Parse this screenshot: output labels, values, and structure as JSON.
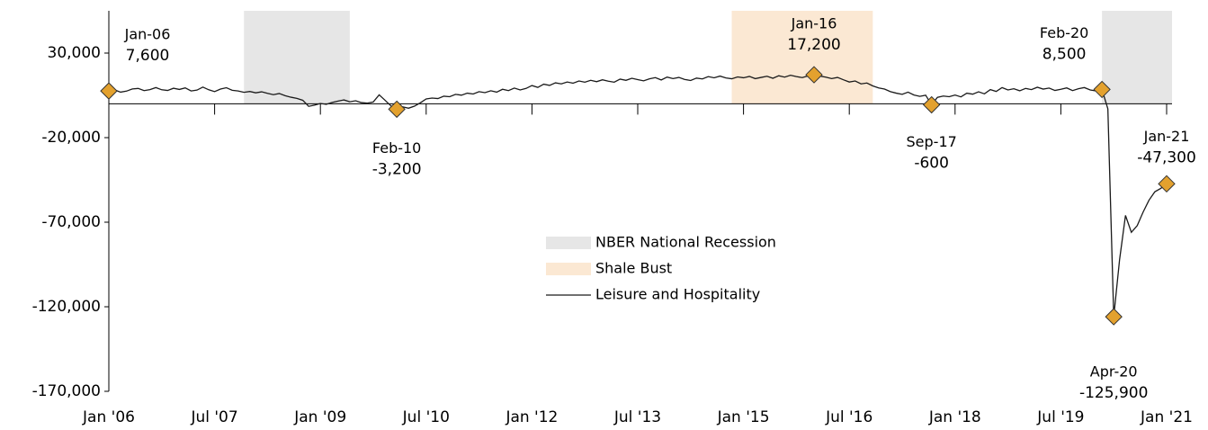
{
  "chart_data": {
    "type": "line",
    "x": [
      "2006-01",
      "2006-02",
      "2006-03",
      "2006-04",
      "2006-05",
      "2006-06",
      "2006-07",
      "2006-08",
      "2006-09",
      "2006-10",
      "2006-11",
      "2006-12",
      "2007-01",
      "2007-02",
      "2007-03",
      "2007-04",
      "2007-05",
      "2007-06",
      "2007-07",
      "2007-08",
      "2007-09",
      "2007-10",
      "2007-11",
      "2007-12",
      "2008-01",
      "2008-02",
      "2008-03",
      "2008-04",
      "2008-05",
      "2008-06",
      "2008-07",
      "2008-08",
      "2008-09",
      "2008-10",
      "2008-11",
      "2008-12",
      "2009-01",
      "2009-02",
      "2009-03",
      "2009-04",
      "2009-05",
      "2009-06",
      "2009-07",
      "2009-08",
      "2009-09",
      "2009-10",
      "2009-11",
      "2009-12",
      "2010-01",
      "2010-02",
      "2010-03",
      "2010-04",
      "2010-05",
      "2010-06",
      "2010-07",
      "2010-08",
      "2010-09",
      "2010-10",
      "2010-11",
      "2010-12",
      "2011-01",
      "2011-02",
      "2011-03",
      "2011-04",
      "2011-05",
      "2011-06",
      "2011-07",
      "2011-08",
      "2011-09",
      "2011-10",
      "2011-11",
      "2011-12",
      "2012-01",
      "2012-02",
      "2012-03",
      "2012-04",
      "2012-05",
      "2012-06",
      "2012-07",
      "2012-08",
      "2012-09",
      "2012-10",
      "2012-11",
      "2012-12",
      "2013-01",
      "2013-02",
      "2013-03",
      "2013-04",
      "2013-05",
      "2013-06",
      "2013-07",
      "2013-08",
      "2013-09",
      "2013-10",
      "2013-11",
      "2013-12",
      "2014-01",
      "2014-02",
      "2014-03",
      "2014-04",
      "2014-05",
      "2014-06",
      "2014-07",
      "2014-08",
      "2014-09",
      "2014-10",
      "2014-11",
      "2014-12",
      "2015-01",
      "2015-02",
      "2015-03",
      "2015-04",
      "2015-05",
      "2015-06",
      "2015-07",
      "2015-08",
      "2015-09",
      "2015-10",
      "2015-11",
      "2015-12",
      "2016-01",
      "2016-02",
      "2016-03",
      "2016-04",
      "2016-05",
      "2016-06",
      "2016-07",
      "2016-08",
      "2016-09",
      "2016-10",
      "2016-11",
      "2016-12",
      "2017-01",
      "2017-02",
      "2017-03",
      "2017-04",
      "2017-05",
      "2017-06",
      "2017-07",
      "2017-08",
      "2017-09",
      "2017-10",
      "2017-11",
      "2017-12",
      "2018-01",
      "2018-02",
      "2018-03",
      "2018-04",
      "2018-05",
      "2018-06",
      "2018-07",
      "2018-08",
      "2018-09",
      "2018-10",
      "2018-11",
      "2018-12",
      "2019-01",
      "2019-02",
      "2019-03",
      "2019-04",
      "2019-05",
      "2019-06",
      "2019-07",
      "2019-08",
      "2019-09",
      "2019-10",
      "2019-11",
      "2019-12",
      "2020-01",
      "2020-02",
      "2020-03",
      "2020-04",
      "2020-05",
      "2020-06",
      "2020-07",
      "2020-08",
      "2020-09",
      "2020-10",
      "2020-11",
      "2020-12",
      "2021-01"
    ],
    "series": [
      {
        "name": "Leisure and Hospitality",
        "color": "#1a1a1a",
        "values": [
          7600,
          8200,
          6900,
          7500,
          8800,
          9100,
          7800,
          8400,
          9600,
          8300,
          7900,
          9200,
          8500,
          9400,
          7600,
          8100,
          9900,
          8300,
          7200,
          8700,
          9500,
          8000,
          7600,
          6800,
          7300,
          6500,
          7100,
          6200,
          5400,
          6100,
          4800,
          3900,
          3200,
          2100,
          -1500,
          -800,
          200,
          -300,
          800,
          1600,
          2300,
          1200,
          1800,
          700,
          400,
          1100,
          5300,
          2100,
          -1200,
          -3200,
          -1800,
          -2600,
          -1400,
          600,
          2900,
          3400,
          3100,
          4500,
          4200,
          5600,
          5100,
          6300,
          5800,
          7200,
          6600,
          7700,
          6900,
          8600,
          7800,
          9300,
          8200,
          9100,
          10800,
          9700,
          11600,
          10900,
          12400,
          11800,
          12900,
          12200,
          13500,
          12800,
          13900,
          13100,
          14200,
          13400,
          12800,
          14600,
          13900,
          15100,
          14300,
          13600,
          14800,
          15500,
          14100,
          15800,
          14900,
          15600,
          14400,
          13800,
          15200,
          14700,
          16100,
          15400,
          16400,
          15300,
          14800,
          15900,
          15400,
          16200,
          14900,
          15600,
          16300,
          15100,
          16600,
          15800,
          16900,
          16100,
          15500,
          16500,
          17200,
          16400,
          15800,
          14900,
          15600,
          14200,
          12900,
          13500,
          11800,
          12300,
          10600,
          9400,
          8700,
          7200,
          6300,
          5600,
          6900,
          5200,
          4400,
          5100,
          -600,
          3800,
          4600,
          4200,
          5200,
          4100,
          6300,
          5700,
          7100,
          5900,
          8400,
          7300,
          9600,
          8200,
          8900,
          7700,
          9100,
          8400,
          9800,
          8700,
          9300,
          7900,
          8600,
          9400,
          7800,
          8900,
          9600,
          8200,
          7600,
          8500,
          -3000,
          -125900,
          -92000,
          -66000,
          -76000,
          -72000,
          -64000,
          -57000,
          -52000,
          -50000,
          -47300
        ]
      }
    ],
    "shading": [
      {
        "name": "NBER National Recession",
        "color": "#e6e6e6",
        "start": "2007-12",
        "end": "2009-06"
      },
      {
        "name": "Shale Bust",
        "color": "#fbe8d3",
        "start": "2014-11",
        "end": "2016-11"
      },
      {
        "name": "NBER National Recession",
        "color": "#e6e6e6",
        "start": "2020-02",
        "end": "2021-01"
      }
    ],
    "annotations": [
      {
        "x": "2006-01",
        "label": "Jan-06",
        "value": 7600,
        "value_label": "7,600"
      },
      {
        "x": "2010-02",
        "label": "Feb-10",
        "value": -3200,
        "value_label": "-3,200"
      },
      {
        "x": "2016-01",
        "label": "Jan-16",
        "value": 17200,
        "value_label": "17,200"
      },
      {
        "x": "2017-09",
        "label": "Sep-17",
        "value": -600,
        "value_label": "-600"
      },
      {
        "x": "2020-02",
        "label": "Feb-20",
        "value": 8500,
        "value_label": "8,500"
      },
      {
        "x": "2020-04",
        "label": "Apr-20",
        "value": -125900,
        "value_label": "-125,900"
      },
      {
        "x": "2021-01",
        "label": "Jan-21",
        "value": -47300,
        "value_label": "-47,300"
      }
    ],
    "marker_color": "#e3a12e",
    "xlim": [
      "2006-01",
      "2021-01"
    ],
    "xticks": [
      {
        "value": "2006-01",
        "label": "Jan '06"
      },
      {
        "value": "2007-07",
        "label": "Jul '07"
      },
      {
        "value": "2009-01",
        "label": "Jan '09"
      },
      {
        "value": "2010-07",
        "label": "Jul '10"
      },
      {
        "value": "2012-01",
        "label": "Jan '12"
      },
      {
        "value": "2013-07",
        "label": "Jul '13"
      },
      {
        "value": "2015-01",
        "label": "Jan '15"
      },
      {
        "value": "2016-07",
        "label": "Jul '16"
      },
      {
        "value": "2018-01",
        "label": "Jan '18"
      },
      {
        "value": "2019-07",
        "label": "Jul '19"
      },
      {
        "value": "2021-01",
        "label": "Jan '21"
      }
    ],
    "ylim": [
      -170000,
      55000
    ],
    "yticks": [
      {
        "value": 30000,
        "label": "30,000"
      },
      {
        "value": -20000,
        "label": "-20,000"
      },
      {
        "value": -70000,
        "label": "-70,000"
      },
      {
        "value": -120000,
        "label": "-120,000"
      },
      {
        "value": -170000,
        "label": "-170,000"
      }
    ]
  }
}
